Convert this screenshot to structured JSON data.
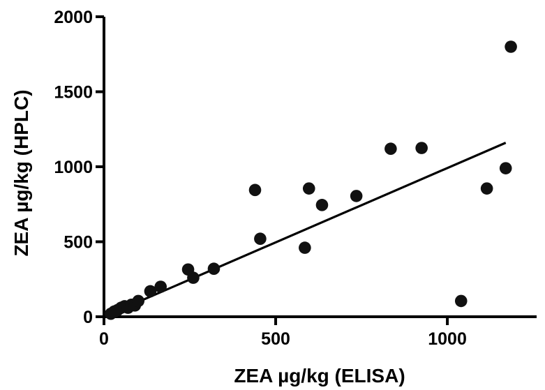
{
  "chart_data": {
    "type": "scatter",
    "xlabel": "ZEA µg/kg (ELISA)",
    "ylabel": "ZEA µg/kg (HPLC)",
    "xlim": [
      0,
      1260
    ],
    "ylim": [
      0,
      2000
    ],
    "x_ticks": [
      0,
      500,
      1000
    ],
    "y_ticks": [
      0,
      500,
      1000,
      1500,
      2000
    ],
    "x_tick_labels": [
      "0",
      "500",
      "1000"
    ],
    "y_tick_labels": [
      "0",
      "500",
      "1000",
      "1500",
      "2000"
    ],
    "grid": false,
    "series": [
      {
        "points": [
          {
            "x": 20,
            "y": 20
          },
          {
            "x": 30,
            "y": 35
          },
          {
            "x": 40,
            "y": 45
          },
          {
            "x": 50,
            "y": 60
          },
          {
            "x": 60,
            "y": 70
          },
          {
            "x": 70,
            "y": 60
          },
          {
            "x": 80,
            "y": 80
          },
          {
            "x": 90,
            "y": 75
          },
          {
            "x": 100,
            "y": 105
          },
          {
            "x": 135,
            "y": 170
          },
          {
            "x": 165,
            "y": 200
          },
          {
            "x": 245,
            "y": 315
          },
          {
            "x": 260,
            "y": 260
          },
          {
            "x": 320,
            "y": 320
          },
          {
            "x": 440,
            "y": 845
          },
          {
            "x": 455,
            "y": 520
          },
          {
            "x": 585,
            "y": 460
          },
          {
            "x": 597,
            "y": 855
          },
          {
            "x": 635,
            "y": 745
          },
          {
            "x": 735,
            "y": 805
          },
          {
            "x": 835,
            "y": 1120
          },
          {
            "x": 925,
            "y": 1125
          },
          {
            "x": 1040,
            "y": 105
          },
          {
            "x": 1115,
            "y": 855
          },
          {
            "x": 1170,
            "y": 990
          },
          {
            "x": 1185,
            "y": 1800
          }
        ]
      }
    ],
    "trendline": {
      "x1": 15,
      "y1": 15,
      "x2": 1170,
      "y2": 1160
    }
  }
}
